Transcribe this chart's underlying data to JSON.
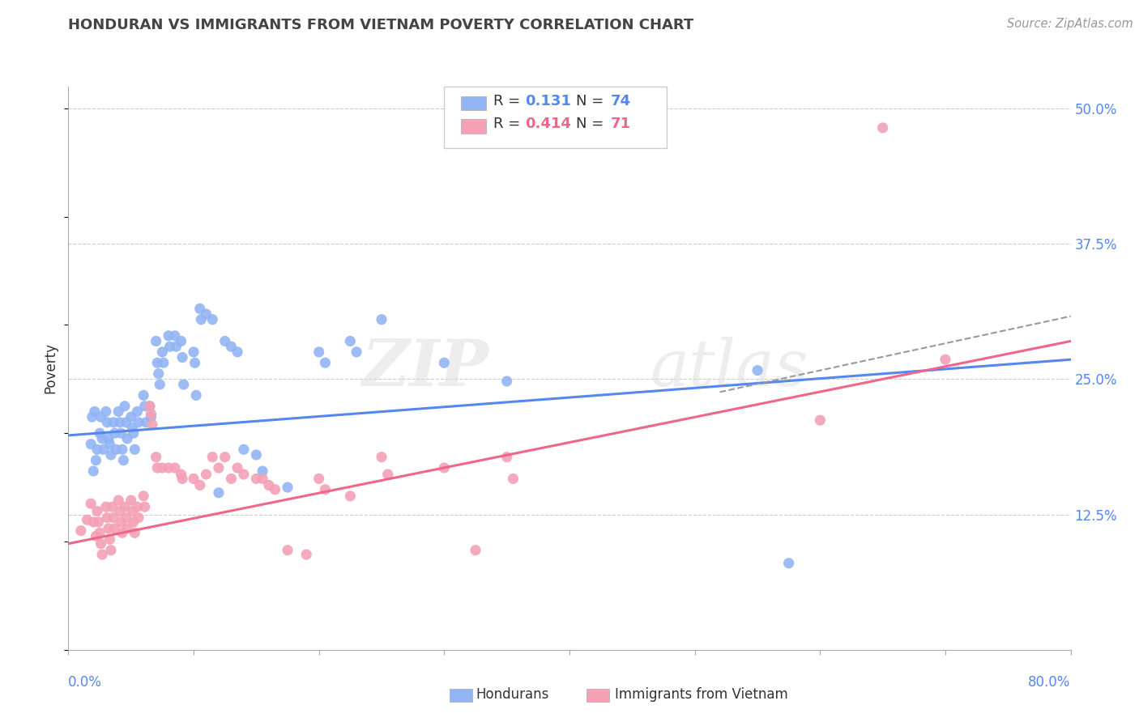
{
  "title": "HONDURAN VS IMMIGRANTS FROM VIETNAM POVERTY CORRELATION CHART",
  "source": "Source: ZipAtlas.com",
  "ylabel": "Poverty",
  "xlim": [
    0.0,
    0.8
  ],
  "ylim": [
    0.0,
    0.52
  ],
  "yticks": [
    0.0,
    0.125,
    0.25,
    0.375,
    0.5
  ],
  "ytick_labels": [
    "",
    "12.5%",
    "25.0%",
    "37.5%",
    "50.0%"
  ],
  "blue_color": "#92B4F4",
  "pink_color": "#F4A0B5",
  "blue_line_color": "#5588EE",
  "pink_line_color": "#EE6688",
  "blue_points": [
    [
      0.018,
      0.19
    ],
    [
      0.019,
      0.215
    ],
    [
      0.021,
      0.22
    ],
    [
      0.022,
      0.175
    ],
    [
      0.023,
      0.185
    ],
    [
      0.02,
      0.165
    ],
    [
      0.025,
      0.2
    ],
    [
      0.026,
      0.215
    ],
    [
      0.027,
      0.195
    ],
    [
      0.028,
      0.185
    ],
    [
      0.03,
      0.22
    ],
    [
      0.031,
      0.21
    ],
    [
      0.032,
      0.195
    ],
    [
      0.033,
      0.19
    ],
    [
      0.034,
      0.18
    ],
    [
      0.036,
      0.21
    ],
    [
      0.037,
      0.2
    ],
    [
      0.038,
      0.185
    ],
    [
      0.04,
      0.22
    ],
    [
      0.041,
      0.21
    ],
    [
      0.042,
      0.2
    ],
    [
      0.043,
      0.185
    ],
    [
      0.044,
      0.175
    ],
    [
      0.045,
      0.225
    ],
    [
      0.046,
      0.21
    ],
    [
      0.047,
      0.195
    ],
    [
      0.05,
      0.215
    ],
    [
      0.051,
      0.205
    ],
    [
      0.052,
      0.2
    ],
    [
      0.053,
      0.185
    ],
    [
      0.055,
      0.22
    ],
    [
      0.056,
      0.21
    ],
    [
      0.06,
      0.235
    ],
    [
      0.061,
      0.225
    ],
    [
      0.062,
      0.21
    ],
    [
      0.065,
      0.225
    ],
    [
      0.066,
      0.215
    ],
    [
      0.07,
      0.285
    ],
    [
      0.071,
      0.265
    ],
    [
      0.072,
      0.255
    ],
    [
      0.073,
      0.245
    ],
    [
      0.075,
      0.275
    ],
    [
      0.076,
      0.265
    ],
    [
      0.08,
      0.29
    ],
    [
      0.081,
      0.28
    ],
    [
      0.085,
      0.29
    ],
    [
      0.086,
      0.28
    ],
    [
      0.09,
      0.285
    ],
    [
      0.091,
      0.27
    ],
    [
      0.092,
      0.245
    ],
    [
      0.1,
      0.275
    ],
    [
      0.101,
      0.265
    ],
    [
      0.102,
      0.235
    ],
    [
      0.105,
      0.315
    ],
    [
      0.106,
      0.305
    ],
    [
      0.11,
      0.31
    ],
    [
      0.115,
      0.305
    ],
    [
      0.12,
      0.145
    ],
    [
      0.125,
      0.285
    ],
    [
      0.13,
      0.28
    ],
    [
      0.135,
      0.275
    ],
    [
      0.14,
      0.185
    ],
    [
      0.15,
      0.18
    ],
    [
      0.155,
      0.165
    ],
    [
      0.175,
      0.15
    ],
    [
      0.2,
      0.275
    ],
    [
      0.205,
      0.265
    ],
    [
      0.225,
      0.285
    ],
    [
      0.23,
      0.275
    ],
    [
      0.25,
      0.305
    ],
    [
      0.3,
      0.265
    ],
    [
      0.35,
      0.248
    ],
    [
      0.55,
      0.258
    ],
    [
      0.575,
      0.08
    ]
  ],
  "pink_points": [
    [
      0.01,
      0.11
    ],
    [
      0.015,
      0.12
    ],
    [
      0.018,
      0.135
    ],
    [
      0.02,
      0.118
    ],
    [
      0.022,
      0.105
    ],
    [
      0.023,
      0.128
    ],
    [
      0.024,
      0.118
    ],
    [
      0.025,
      0.108
    ],
    [
      0.026,
      0.098
    ],
    [
      0.027,
      0.088
    ],
    [
      0.03,
      0.132
    ],
    [
      0.031,
      0.122
    ],
    [
      0.032,
      0.112
    ],
    [
      0.033,
      0.102
    ],
    [
      0.034,
      0.092
    ],
    [
      0.035,
      0.132
    ],
    [
      0.036,
      0.122
    ],
    [
      0.037,
      0.112
    ],
    [
      0.04,
      0.138
    ],
    [
      0.041,
      0.128
    ],
    [
      0.042,
      0.118
    ],
    [
      0.043,
      0.108
    ],
    [
      0.045,
      0.132
    ],
    [
      0.046,
      0.122
    ],
    [
      0.047,
      0.112
    ],
    [
      0.05,
      0.138
    ],
    [
      0.051,
      0.128
    ],
    [
      0.052,
      0.118
    ],
    [
      0.053,
      0.108
    ],
    [
      0.055,
      0.132
    ],
    [
      0.056,
      0.122
    ],
    [
      0.06,
      0.142
    ],
    [
      0.061,
      0.132
    ],
    [
      0.065,
      0.225
    ],
    [
      0.066,
      0.218
    ],
    [
      0.067,
      0.208
    ],
    [
      0.07,
      0.178
    ],
    [
      0.071,
      0.168
    ],
    [
      0.075,
      0.168
    ],
    [
      0.08,
      0.168
    ],
    [
      0.085,
      0.168
    ],
    [
      0.09,
      0.162
    ],
    [
      0.091,
      0.158
    ],
    [
      0.1,
      0.158
    ],
    [
      0.105,
      0.152
    ],
    [
      0.11,
      0.162
    ],
    [
      0.115,
      0.178
    ],
    [
      0.12,
      0.168
    ],
    [
      0.125,
      0.178
    ],
    [
      0.13,
      0.158
    ],
    [
      0.135,
      0.168
    ],
    [
      0.14,
      0.162
    ],
    [
      0.15,
      0.158
    ],
    [
      0.155,
      0.158
    ],
    [
      0.16,
      0.152
    ],
    [
      0.165,
      0.148
    ],
    [
      0.175,
      0.092
    ],
    [
      0.19,
      0.088
    ],
    [
      0.2,
      0.158
    ],
    [
      0.205,
      0.148
    ],
    [
      0.225,
      0.142
    ],
    [
      0.25,
      0.178
    ],
    [
      0.255,
      0.162
    ],
    [
      0.3,
      0.168
    ],
    [
      0.325,
      0.092
    ],
    [
      0.35,
      0.178
    ],
    [
      0.355,
      0.158
    ],
    [
      0.6,
      0.212
    ],
    [
      0.65,
      0.482
    ],
    [
      0.7,
      0.268
    ]
  ],
  "blue_trend": [
    0.0,
    0.198,
    0.8,
    0.268
  ],
  "pink_trend": [
    0.0,
    0.098,
    0.8,
    0.285
  ],
  "dashed_trend": [
    0.52,
    0.238,
    0.8,
    0.308
  ]
}
